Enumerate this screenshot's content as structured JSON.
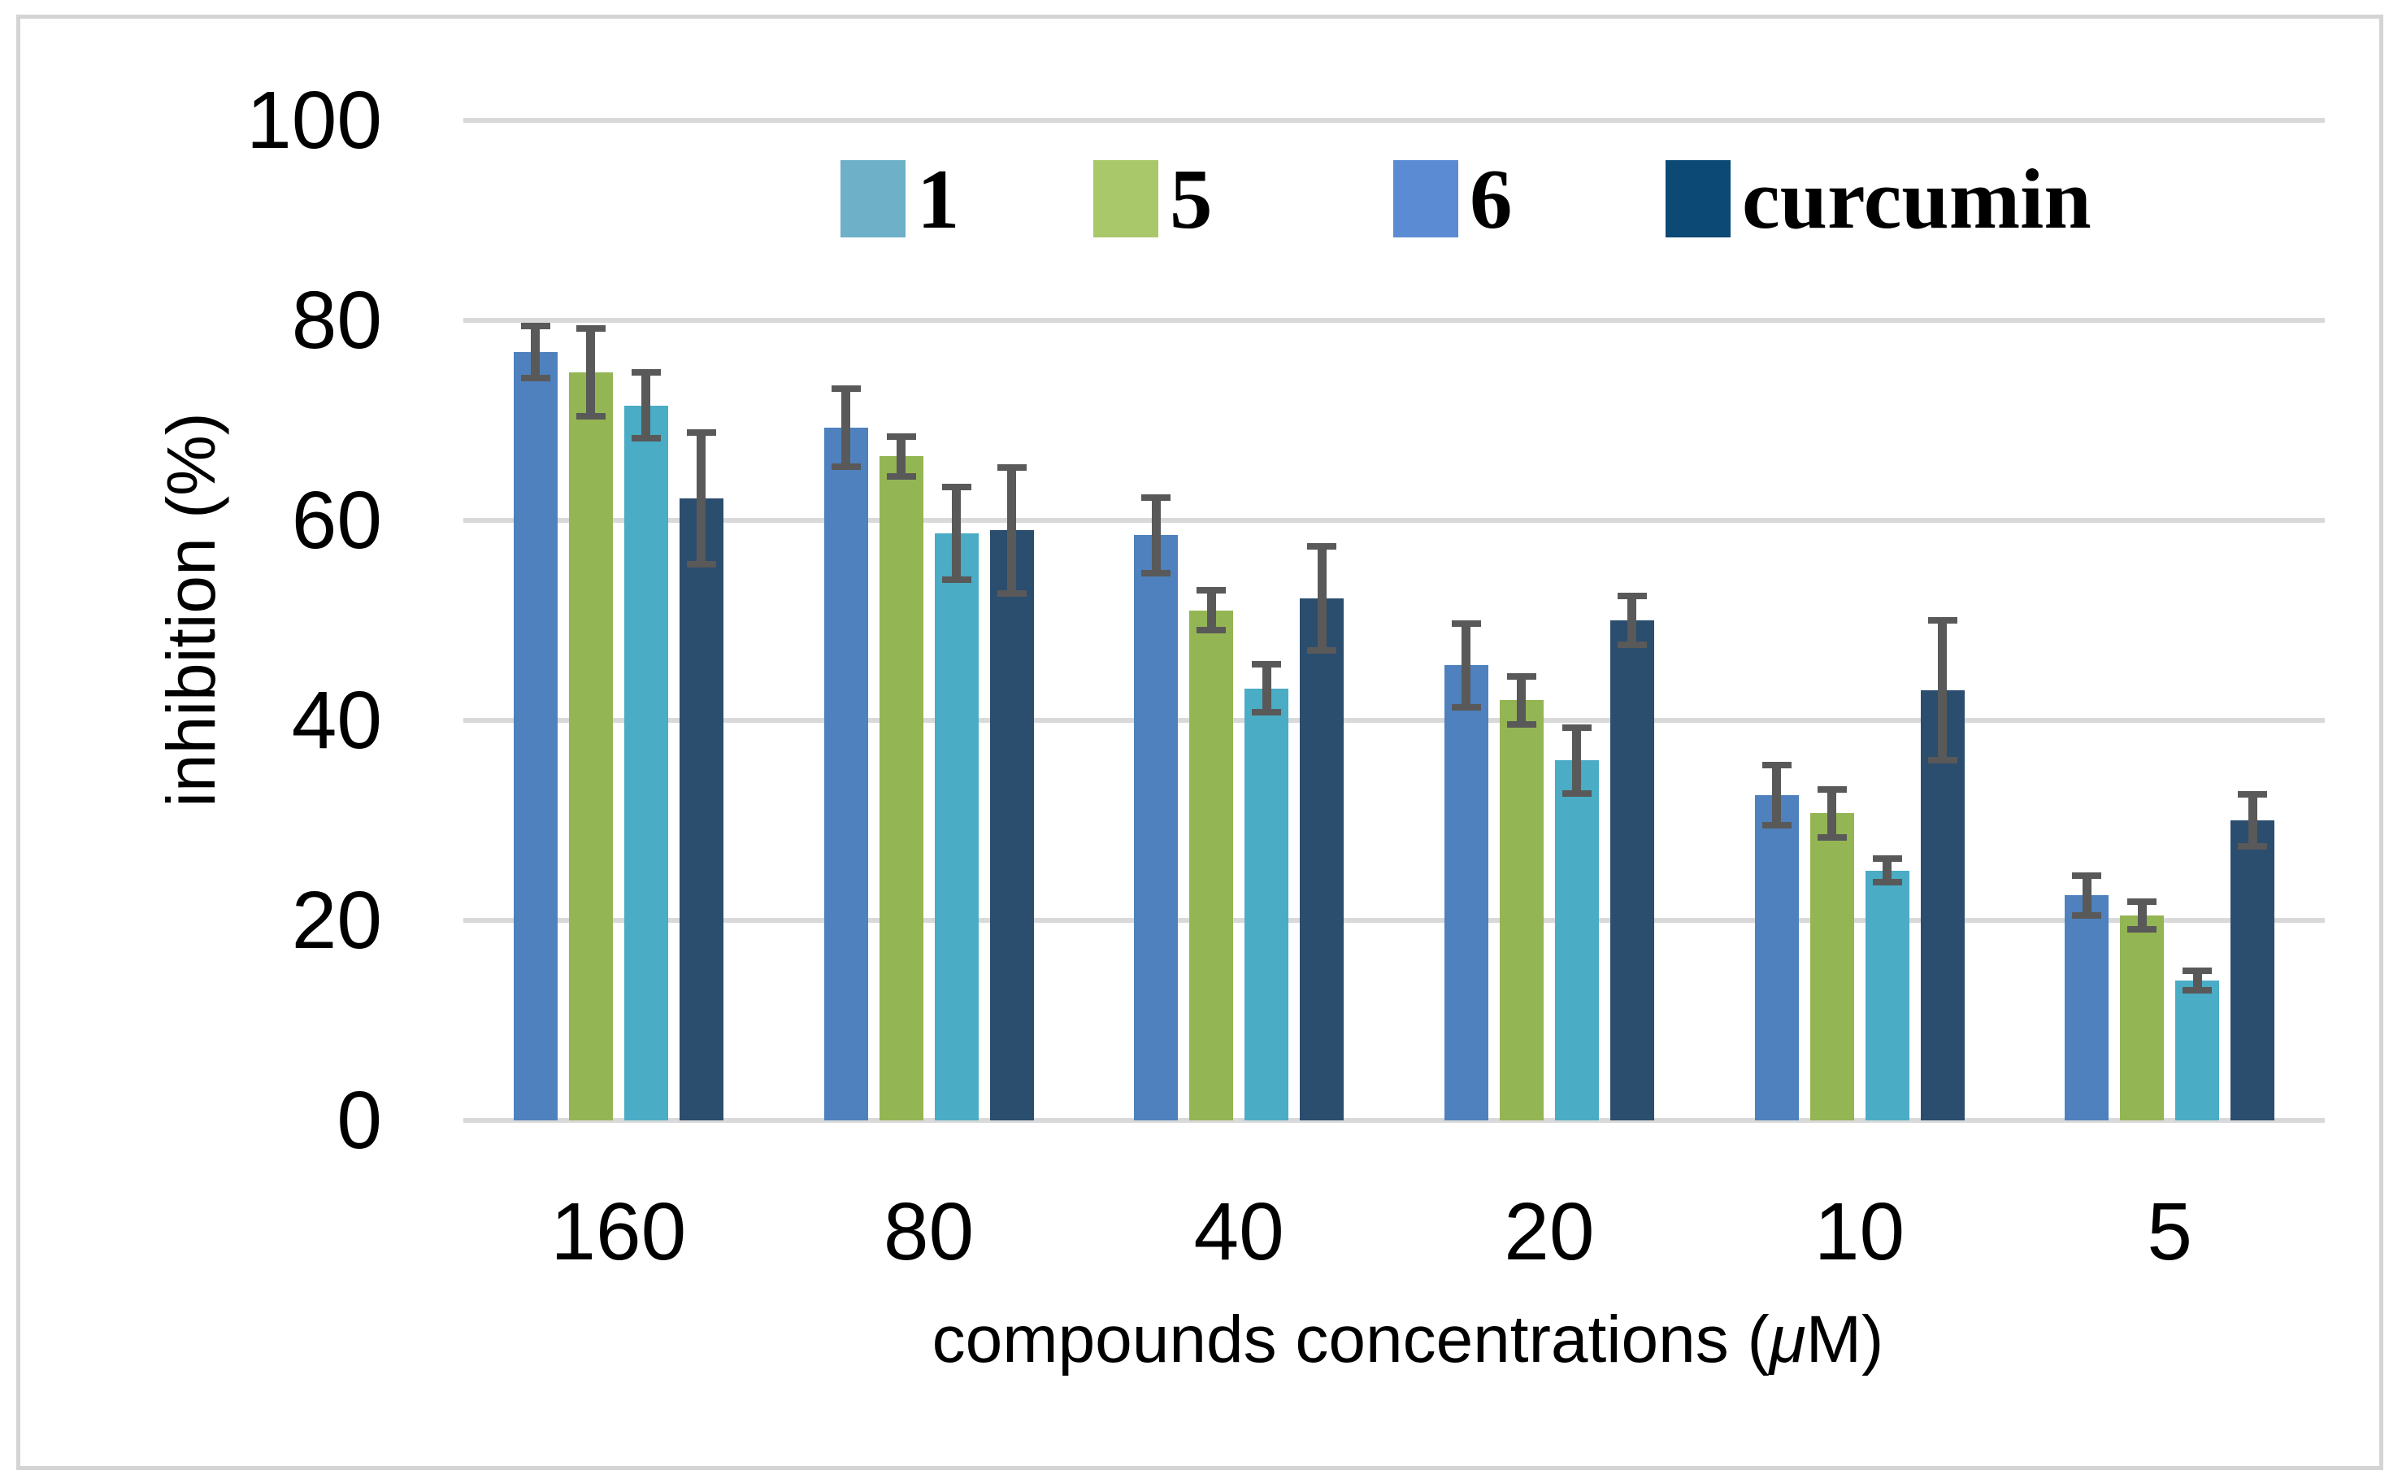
{
  "figure": {
    "background": "#ffffff",
    "border_color": "#d4d4d4"
  },
  "chart_data": {
    "type": "bar",
    "title": "",
    "xlabel": "compounds concentrations (μM)",
    "xlabel_parts": {
      "prefix": "compounds concentrations (",
      "mu": "μ",
      "suffix": "M)"
    },
    "ylabel": "inhibition (%)",
    "ylim": [
      0,
      100
    ],
    "yticks": [
      0,
      20,
      40,
      60,
      80,
      100
    ],
    "grid": true,
    "legend_position": "top-center",
    "categories": [
      "160",
      "80",
      "40",
      "20",
      "10",
      "5"
    ],
    "bar_order": [
      "6",
      "5",
      "1",
      "curcumin"
    ],
    "series": [
      {
        "name": "1",
        "color": "#4aacc5",
        "swatch_color": "#6db0c7",
        "values": [
          71.5,
          58.7,
          43.2,
          36.0,
          25.0,
          14.0
        ],
        "errors": [
          3.3,
          4.6,
          2.4,
          3.3,
          1.2,
          1.0
        ]
      },
      {
        "name": "5",
        "color": "#94b553",
        "swatch_color": "#a9c86a",
        "values": [
          74.8,
          66.4,
          51.0,
          42.0,
          30.7,
          20.5
        ],
        "errors": [
          4.4,
          2.0,
          2.0,
          2.4,
          2.4,
          1.4
        ]
      },
      {
        "name": "6",
        "color": "#4e81bd",
        "swatch_color": "#5b8bd3",
        "values": [
          76.8,
          69.3,
          58.5,
          45.5,
          32.5,
          22.5
        ],
        "errors": [
          2.6,
          3.9,
          3.8,
          4.2,
          3.0,
          2.0
        ]
      },
      {
        "name": "curcumin",
        "color": "#2b4d6e",
        "swatch_color": "#0c4974",
        "values": [
          62.2,
          59.0,
          52.2,
          50.0,
          43.0,
          30.0
        ],
        "errors": [
          6.6,
          6.3,
          5.2,
          2.4,
          7.0,
          2.6
        ]
      }
    ],
    "error_bar_color": "#595959",
    "gridline_color": "#d9d9d9",
    "text_color": "#000000"
  }
}
